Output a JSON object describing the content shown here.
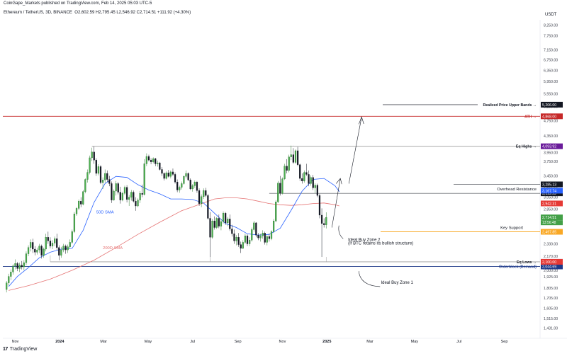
{
  "header": {
    "caption": "CoinGape_Markets published on TradingView.com, Feb 14, 2025 05:03 UTC-5",
    "symbol": "Ethereum / TetherUS, 3D, BINANCE",
    "ohlc": "O2,602.59  H2,795.45  L2,546.92  C2,714.51  +111.92 (+4.30%)",
    "currency": "USDT"
  },
  "footer": {
    "brand": "TradingView",
    "logo_icon": "tradingview-logo-icon"
  },
  "colors": {
    "bull": "#26a69a",
    "bear": "#131722",
    "bullBody": "#4caf50",
    "sma50": "#2962ff",
    "sma200": "#e57373",
    "ath": "#c62828",
    "keySupport": "#f9a825",
    "orderblock": "#1e3a8a",
    "grey": "#9e9e9e"
  },
  "chart_data": {
    "type": "candlestick",
    "y_scale": "log",
    "ylim": [
      1350,
      8500
    ],
    "y_ticks": [
      8250,
      7750,
      7150,
      6750,
      6350,
      5950,
      5550,
      5150,
      4750,
      4350,
      3950,
      3750,
      3450,
      3250,
      3050,
      2850,
      2650,
      2500,
      2330,
      2170,
      2000,
      1925,
      1805,
      1705,
      1605,
      1515,
      1431
    ],
    "y_tick_labels": [
      "8,250.00",
      "7,750.00",
      "7,150.00",
      "6,750.00",
      "6,350.00",
      "5,950.00",
      "5,550.00",
      "5,150.00",
      "4,750.00",
      "4,350.00",
      "3,950.00",
      "3,750.00",
      "3,450.00",
      "3,250.00",
      "3,050.00",
      "2,850.00",
      "2,650.00",
      "2,500.00",
      "2,330.00",
      "2,170.00",
      "2,000.00",
      "1,925.00",
      "1,805.00",
      "1,705.00",
      "1,605.00",
      "1,515.00",
      "1,431.00"
    ],
    "x_ticks": [
      {
        "label": "Nov",
        "date": "2023-11-01",
        "bold": false
      },
      {
        "label": "2024",
        "date": "2024-01-01",
        "bold": true
      },
      {
        "label": "Mar",
        "date": "2024-03-01",
        "bold": false
      },
      {
        "label": "May",
        "date": "2024-05-01",
        "bold": false
      },
      {
        "label": "Jul",
        "date": "2024-07-01",
        "bold": false
      },
      {
        "label": "Sep",
        "date": "2024-09-01",
        "bold": false
      },
      {
        "label": "Nov",
        "date": "2024-11-01",
        "bold": false
      },
      {
        "label": "2025",
        "date": "2025-01-01",
        "bold": true
      },
      {
        "label": "Mar",
        "date": "2025-03-01",
        "bold": false
      },
      {
        "label": "May",
        "date": "2025-05-01",
        "bold": false
      },
      {
        "label": "Jul",
        "date": "2025-07-01",
        "bold": false
      },
      {
        "label": "Sep",
        "date": "2025-09-01",
        "bold": false
      }
    ],
    "x_range": [
      "2023-10-15",
      "2025-10-20"
    ],
    "candle_interval_days": 3,
    "ohlc": [
      [
        1790,
        1880,
        1760,
        1860
      ],
      [
        1860,
        1960,
        1830,
        1930
      ],
      [
        1930,
        2010,
        1890,
        1980
      ],
      [
        1980,
        2070,
        1950,
        2050
      ],
      [
        2050,
        2130,
        2010,
        2080
      ],
      [
        2080,
        2100,
        1990,
        2020
      ],
      [
        2020,
        2090,
        1980,
        2060
      ],
      [
        2060,
        2110,
        2010,
        2040
      ],
      [
        2040,
        2120,
        2000,
        2090
      ],
      [
        2090,
        2230,
        2060,
        2200
      ],
      [
        2200,
        2310,
        2170,
        2280
      ],
      [
        2280,
        2390,
        2230,
        2350
      ],
      [
        2350,
        2400,
        2210,
        2260
      ],
      [
        2260,
        2300,
        2180,
        2220
      ],
      [
        2220,
        2280,
        2190,
        2250
      ],
      [
        2250,
        2330,
        2210,
        2300
      ],
      [
        2300,
        2320,
        2140,
        2180
      ],
      [
        2180,
        2280,
        2150,
        2260
      ],
      [
        2260,
        2470,
        2230,
        2420
      ],
      [
        2420,
        2500,
        2330,
        2370
      ],
      [
        2370,
        2420,
        2270,
        2300
      ],
      [
        2300,
        2380,
        2260,
        2340
      ],
      [
        2340,
        2430,
        2300,
        2400
      ],
      [
        2400,
        2470,
        2250,
        2280
      ],
      [
        2280,
        2310,
        2120,
        2180
      ],
      [
        2180,
        2290,
        2150,
        2250
      ],
      [
        2250,
        2330,
        2220,
        2300
      ],
      [
        2300,
        2320,
        2200,
        2250
      ],
      [
        2250,
        2320,
        2210,
        2290
      ],
      [
        2290,
        2390,
        2270,
        2350
      ],
      [
        2350,
        2530,
        2330,
        2500
      ],
      [
        2500,
        2800,
        2480,
        2770
      ],
      [
        2770,
        2880,
        2740,
        2860
      ],
      [
        2860,
        3010,
        2830,
        2980
      ],
      [
        2980,
        3050,
        2880,
        2930
      ],
      [
        2930,
        3180,
        2910,
        3150
      ],
      [
        3150,
        3400,
        3120,
        3380
      ],
      [
        3380,
        3580,
        3320,
        3520
      ],
      [
        3520,
        3880,
        3480,
        3830
      ],
      [
        3830,
        4060,
        3760,
        3960
      ],
      [
        3960,
        4090,
        3700,
        3780
      ],
      [
        3780,
        3820,
        3450,
        3500
      ],
      [
        3500,
        3690,
        3460,
        3640
      ],
      [
        3640,
        3670,
        3290,
        3320
      ],
      [
        3320,
        3420,
        3200,
        3370
      ],
      [
        3370,
        3580,
        3310,
        3500
      ],
      [
        3500,
        3560,
        3330,
        3380
      ],
      [
        3380,
        3450,
        3250,
        3300
      ],
      [
        3300,
        3340,
        2950,
        3000
      ],
      [
        3000,
        3190,
        2990,
        3160
      ],
      [
        3160,
        3350,
        3080,
        3300
      ],
      [
        3300,
        3330,
        3100,
        3140
      ],
      [
        3140,
        3240,
        2940,
        3000
      ],
      [
        3000,
        3150,
        2980,
        3120
      ],
      [
        3120,
        3260,
        3090,
        3230
      ],
      [
        3230,
        3270,
        2960,
        3010
      ],
      [
        3010,
        3090,
        2900,
        3050
      ],
      [
        3050,
        3180,
        2990,
        3140
      ],
      [
        3140,
        3170,
        2960,
        2980
      ],
      [
        2980,
        3050,
        2820,
        2900
      ],
      [
        2900,
        3030,
        2880,
        3000
      ],
      [
        3000,
        3160,
        2950,
        3120
      ],
      [
        3120,
        3280,
        3050,
        3100
      ],
      [
        3100,
        3800,
        3080,
        3700
      ],
      [
        3700,
        3930,
        3650,
        3860
      ],
      [
        3860,
        3900,
        3750,
        3780
      ],
      [
        3780,
        3820,
        3690,
        3740
      ],
      [
        3740,
        3840,
        3710,
        3810
      ],
      [
        3810,
        3830,
        3650,
        3700
      ],
      [
        3700,
        3770,
        3640,
        3720
      ],
      [
        3720,
        3740,
        3560,
        3580
      ],
      [
        3580,
        3630,
        3450,
        3500
      ],
      [
        3500,
        3520,
        3360,
        3400
      ],
      [
        3400,
        3540,
        3380,
        3510
      ],
      [
        3510,
        3570,
        3420,
        3440
      ],
      [
        3440,
        3560,
        3400,
        3530
      ],
      [
        3530,
        3600,
        3450,
        3480
      ],
      [
        3480,
        3520,
        3300,
        3330
      ],
      [
        3330,
        3380,
        3140,
        3180
      ],
      [
        3180,
        3260,
        3130,
        3230
      ],
      [
        3230,
        3340,
        3190,
        3300
      ],
      [
        3300,
        3460,
        3280,
        3440
      ],
      [
        3440,
        3560,
        3400,
        3500
      ],
      [
        3500,
        3520,
        3350,
        3370
      ],
      [
        3370,
        3400,
        3180,
        3200
      ],
      [
        3200,
        3290,
        3150,
        3260
      ],
      [
        3260,
        3360,
        3220,
        3330
      ],
      [
        3330,
        3350,
        3130,
        3170
      ],
      [
        3170,
        3210,
        2900,
        2940
      ],
      [
        2940,
        3100,
        2880,
        3060
      ],
      [
        3060,
        3210,
        3020,
        3170
      ],
      [
        3170,
        3220,
        3050,
        3080
      ],
      [
        3080,
        3110,
        2680,
        2700
      ],
      [
        2700,
        2800,
        2160,
        2420
      ],
      [
        2420,
        2690,
        2400,
        2660
      ],
      [
        2660,
        2730,
        2530,
        2560
      ],
      [
        2560,
        2720,
        2540,
        2700
      ],
      [
        2700,
        2760,
        2550,
        2580
      ],
      [
        2580,
        2690,
        2520,
        2650
      ],
      [
        2650,
        2810,
        2620,
        2780
      ],
      [
        2780,
        2800,
        2600,
        2630
      ],
      [
        2630,
        2720,
        2580,
        2690
      ],
      [
        2690,
        2760,
        2510,
        2540
      ],
      [
        2540,
        2600,
        2430,
        2470
      ],
      [
        2470,
        2530,
        2330,
        2370
      ],
      [
        2370,
        2450,
        2310,
        2420
      ],
      [
        2420,
        2480,
        2290,
        2320
      ],
      [
        2320,
        2360,
        2210,
        2270
      ],
      [
        2270,
        2380,
        2260,
        2350
      ],
      [
        2350,
        2470,
        2330,
        2440
      ],
      [
        2440,
        2460,
        2300,
        2330
      ],
      [
        2330,
        2420,
        2300,
        2380
      ],
      [
        2380,
        2560,
        2360,
        2530
      ],
      [
        2530,
        2660,
        2500,
        2630
      ],
      [
        2630,
        2640,
        2420,
        2450
      ],
      [
        2450,
        2480,
        2380,
        2410
      ],
      [
        2410,
        2470,
        2360,
        2440
      ],
      [
        2440,
        2520,
        2400,
        2480
      ],
      [
        2480,
        2500,
        2320,
        2350
      ],
      [
        2350,
        2450,
        2310,
        2430
      ],
      [
        2430,
        2470,
        2360,
        2400
      ],
      [
        2400,
        2520,
        2380,
        2500
      ],
      [
        2500,
        2690,
        2480,
        2660
      ],
      [
        2660,
        3000,
        2640,
        2970
      ],
      [
        2970,
        3350,
        2950,
        3310
      ],
      [
        3310,
        3450,
        3080,
        3120
      ],
      [
        3120,
        3420,
        3100,
        3390
      ],
      [
        3390,
        3700,
        3370,
        3650
      ],
      [
        3650,
        3800,
        3500,
        3560
      ],
      [
        3560,
        3900,
        3520,
        3850
      ],
      [
        3850,
        4110,
        3780,
        3900
      ],
      [
        3900,
        4050,
        3700,
        3730
      ],
      [
        3730,
        4020,
        3700,
        3990
      ],
      [
        3990,
        4080,
        3650,
        3680
      ],
      [
        3680,
        3700,
        3350,
        3400
      ],
      [
        3400,
        3500,
        3300,
        3350
      ],
      [
        3350,
        3560,
        3320,
        3520
      ],
      [
        3520,
        3700,
        3450,
        3480
      ],
      [
        3480,
        3560,
        3250,
        3300
      ],
      [
        3300,
        3460,
        3260,
        3420
      ],
      [
        3420,
        3470,
        3180,
        3220
      ],
      [
        3220,
        3310,
        3120,
        3270
      ],
      [
        3270,
        3300,
        3050,
        3080
      ],
      [
        3080,
        3110,
        2700,
        2750
      ],
      [
        2750,
        2860,
        2160,
        2620
      ],
      [
        2620,
        2700,
        2560,
        2600
      ],
      [
        2600,
        2795,
        2547,
        2715
      ]
    ],
    "sma50": [
      [
        1,
        1820
      ],
      [
        5,
        1930
      ],
      [
        10,
        2030
      ],
      [
        15,
        2150
      ],
      [
        20,
        2220
      ],
      [
        25,
        2260
      ],
      [
        30,
        2270
      ],
      [
        35,
        2520
      ],
      [
        40,
        2960
      ],
      [
        45,
        3300
      ],
      [
        50,
        3440
      ],
      [
        55,
        3420
      ],
      [
        60,
        3280
      ],
      [
        65,
        3180
      ],
      [
        70,
        3110
      ],
      [
        75,
        3020
      ],
      [
        80,
        3020
      ],
      [
        85,
        3010
      ],
      [
        90,
        2950
      ],
      [
        95,
        2780
      ],
      [
        100,
        2620
      ],
      [
        105,
        2560
      ],
      [
        110,
        2470
      ],
      [
        115,
        2450
      ],
      [
        120,
        2460
      ],
      [
        125,
        2550
      ],
      [
        130,
        2830
      ],
      [
        135,
        3160
      ],
      [
        140,
        3380
      ],
      [
        145,
        3400
      ],
      [
        150,
        3260
      ],
      [
        152,
        3150
      ]
    ],
    "sma200": [
      [
        1,
        1780
      ],
      [
        10,
        1830
      ],
      [
        20,
        1900
      ],
      [
        30,
        2000
      ],
      [
        40,
        2120
      ],
      [
        50,
        2280
      ],
      [
        60,
        2460
      ],
      [
        70,
        2640
      ],
      [
        80,
        2820
      ],
      [
        90,
        2950
      ],
      [
        95,
        3020
      ],
      [
        100,
        3040
      ],
      [
        105,
        3040
      ],
      [
        110,
        3020
      ],
      [
        115,
        2980
      ],
      [
        120,
        2940
      ],
      [
        125,
        2920
      ],
      [
        130,
        2910
      ],
      [
        135,
        2920
      ],
      [
        140,
        2940
      ],
      [
        145,
        2950
      ],
      [
        150,
        2920
      ],
      [
        152,
        2900
      ]
    ],
    "indicator_labels": [
      {
        "text": "50D SMA",
        "series": "sma50",
        "at_index": 41,
        "value": 2780
      },
      {
        "text": "200D SMA",
        "series": "sma200",
        "at_index": 44,
        "value": 2260
      }
    ],
    "levels": [
      {
        "name": "Realized Price Upper Bands",
        "value": 5206,
        "badge": "5,206.00",
        "color": "#131722",
        "kind": "short-line"
      },
      {
        "name": "ATH",
        "value": 4868,
        "badge": "4,868.00",
        "color": "#c62828",
        "kind": "full-line"
      },
      {
        "name": "Eq Highs",
        "value": 4093.92,
        "badge": "4,093.92",
        "color": "#9e9e9e",
        "kind": "line-from-start"
      },
      {
        "name": "Overhead Resistance",
        "value": 3119.99,
        "badge": "3,119.99",
        "color": "#131722",
        "kind": "label-below"
      },
      {
        "name": "Key Support",
        "value": 2497.85,
        "badge": "2,497.85",
        "color": "#f9a825",
        "kind": "label-above"
      },
      {
        "name": "Eq Lows",
        "value": 2100,
        "badge": "2,100.00",
        "color": "#9e9e9e",
        "kind": "line-from-start"
      },
      {
        "name": "Orderblock (Demand)",
        "value": 2044.69,
        "badge": "2,044.69",
        "color": "#1e3a8a",
        "kind": "full-line"
      }
    ],
    "extra_badges": [
      {
        "value": 3285.13,
        "text": "3,285.13",
        "bg": "#131722"
      },
      {
        "value": 3167.74,
        "text": "3,167.74",
        "bg": "#2962ff"
      },
      {
        "value": 2942.31,
        "text": "2,942.31",
        "bg": "#e53935"
      },
      {
        "value": 2714.51,
        "text": "2,714.51",
        "bg": "#43a047"
      },
      {
        "value": 2100,
        "text": "2,100.00",
        "bg": "#e53935"
      }
    ],
    "countdown": "13:56:48",
    "annotations": [
      {
        "text": "Ideal Buy Zone 2",
        "index": 156,
        "value": 2370
      },
      {
        "text": "(If BTC retains its bullish structure)",
        "index": 156,
        "value": 2320
      },
      {
        "text": "Ideal Buy Zone 1",
        "index": 171,
        "value": 1850
      }
    ]
  }
}
